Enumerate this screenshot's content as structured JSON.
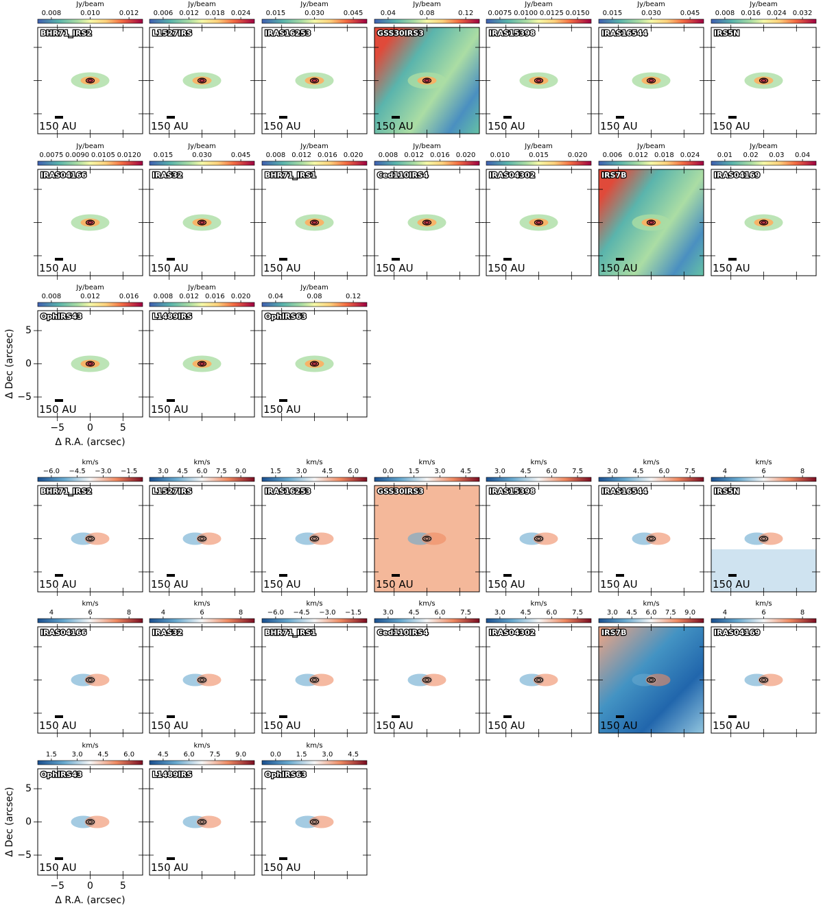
{
  "figure": {
    "x_label": "Δ R.A. (arcsec)",
    "y_label": "Δ Dec (arcsec)",
    "scale_label": "150 AU",
    "xlim": [
      -8,
      8
    ],
    "ylim": [
      -8,
      8
    ],
    "xticks": [
      {
        "value": -5,
        "label": "−5"
      },
      0,
      5
    ],
    "yticks": [
      {
        "value": -5,
        "label": "−5"
      },
      0,
      5
    ],
    "sources": [
      "BHR71_IRS2",
      "L1527IRS",
      "IRAS16253",
      "GSS30IRS3",
      "IRAS15398",
      "IRAS16544",
      "IRS5N",
      "IRAS04166",
      "IRAS32",
      "BHR71_IRS1",
      "Ced110IRS4",
      "IRAS04302",
      "IRS7B",
      "IRAS04169",
      "OphIRS43",
      "L1489IRS",
      "OphIRS63"
    ],
    "moment0": {
      "unit": "Jy/beam",
      "colorbar_ticks": [
        [
          0.008,
          {
            "value": 0.01,
            "label": "0.010"
          },
          0.012
        ],
        [
          0.006,
          0.012,
          0.018,
          0.024
        ],
        [
          0.015,
          {
            "value": 0.03,
            "label": "0.030"
          },
          0.045
        ],
        [
          0.04,
          0.08,
          0.12
        ],
        [
          0.0075,
          {
            "value": 0.01,
            "label": "0.0100"
          },
          0.0125,
          {
            "value": 0.015,
            "label": "0.0150"
          }
        ],
        [
          0.015,
          {
            "value": 0.03,
            "label": "0.030"
          },
          0.045
        ],
        [
          0.008,
          0.016,
          0.024,
          0.032
        ],
        [
          0.0075,
          {
            "value": 0.009,
            "label": "0.0090"
          },
          0.0105,
          {
            "value": 0.012,
            "label": "0.0120"
          }
        ],
        [
          0.015,
          {
            "value": 0.03,
            "label": "0.030"
          },
          0.045
        ],
        [
          0.008,
          0.012,
          0.016,
          {
            "value": 0.02,
            "label": "0.020"
          }
        ],
        [
          0.008,
          0.012,
          0.016,
          {
            "value": 0.02,
            "label": "0.020"
          }
        ],
        [
          {
            "value": 0.01,
            "label": "0.010"
          },
          0.015,
          {
            "value": 0.02,
            "label": "0.020"
          }
        ],
        [
          0.006,
          0.012,
          0.018,
          0.024
        ],
        [
          0.01,
          0.02,
          0.03,
          0.04
        ],
        [
          0.008,
          0.012,
          0.016
        ],
        [
          0.008,
          0.012,
          0.016,
          {
            "value": 0.02,
            "label": "0.020"
          }
        ],
        [
          0.04,
          0.08,
          0.12
        ]
      ]
    },
    "moment1": {
      "unit": "km/s",
      "colorbar_ticks": [
        [
          {
            "value": -6,
            "label": "−6.0"
          },
          {
            "value": -4.5,
            "label": "−4.5"
          },
          {
            "value": -3,
            "label": "−3.0"
          },
          {
            "value": -1.5,
            "label": "−1.5"
          }
        ],
        [
          {
            "value": 3,
            "label": "3.0"
          },
          4.5,
          {
            "value": 6,
            "label": "6.0"
          },
          7.5,
          {
            "value": 9,
            "label": "9.0"
          }
        ],
        [
          1.5,
          {
            "value": 3,
            "label": "3.0"
          },
          4.5,
          {
            "value": 6,
            "label": "6.0"
          }
        ],
        [
          {
            "value": 0,
            "label": "0.0"
          },
          1.5,
          {
            "value": 3,
            "label": "3.0"
          },
          4.5
        ],
        [
          {
            "value": 3,
            "label": "3.0"
          },
          4.5,
          {
            "value": 6,
            "label": "6.0"
          },
          7.5
        ],
        [
          {
            "value": 3,
            "label": "3.0"
          },
          4.5,
          {
            "value": 6,
            "label": "6.0"
          },
          7.5
        ],
        [
          4,
          6,
          8
        ],
        [
          4,
          6,
          8
        ],
        [
          4,
          6,
          8
        ],
        [
          {
            "value": -6,
            "label": "−6.0"
          },
          {
            "value": -4.5,
            "label": "−4.5"
          },
          {
            "value": -3,
            "label": "−3.0"
          },
          {
            "value": -1.5,
            "label": "−1.5"
          }
        ],
        [
          {
            "value": 3,
            "label": "3.0"
          },
          4.5,
          {
            "value": 6,
            "label": "6.0"
          },
          7.5
        ],
        [
          {
            "value": 3,
            "label": "3.0"
          },
          4.5,
          {
            "value": 6,
            "label": "6.0"
          },
          7.5
        ],
        [
          {
            "value": 3,
            "label": "3.0"
          },
          4.5,
          {
            "value": 6,
            "label": "6.0"
          },
          7.5,
          {
            "value": 9,
            "label": "9.0"
          }
        ],
        [
          4,
          6,
          8
        ],
        [
          1.5,
          {
            "value": 3,
            "label": "3.0"
          },
          4.5,
          {
            "value": 6,
            "label": "6.0"
          }
        ],
        [
          4.5,
          {
            "value": 6,
            "label": "6.0"
          },
          7.5,
          {
            "value": 9,
            "label": "9.0"
          }
        ],
        [
          {
            "value": 0,
            "label": "0.0"
          },
          1.5,
          {
            "value": 3,
            "label": "3.0"
          },
          4.5
        ]
      ]
    }
  }
}
